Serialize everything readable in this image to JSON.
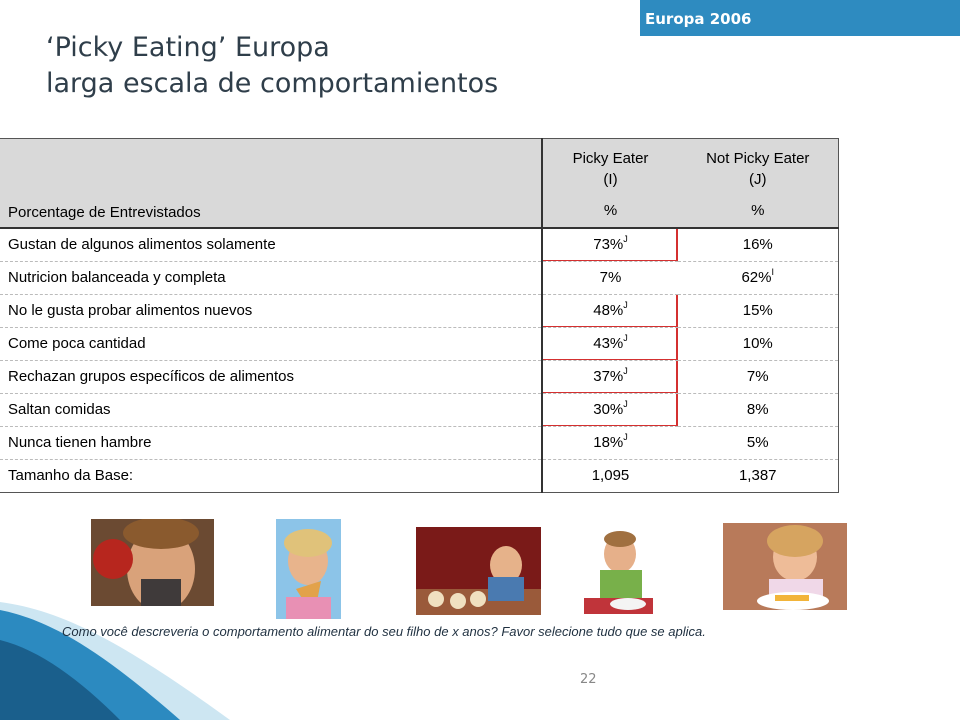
{
  "badge": "Europa 2006",
  "title_line1": "‘Picky Eating’  Europa",
  "title_line2": "larga escala de comportamientos",
  "table": {
    "header_label": "Porcentage de Entrevistados",
    "col1_name": "Picky Eater",
    "col1_code": "(I)",
    "col1_unit": "%",
    "col2_name": "Not Picky Eater",
    "col2_code": "(J)",
    "col2_unit": "%",
    "rows": [
      {
        "label": "Gustan de algunos alimentos solamente",
        "v1": "73%",
        "s1": "J",
        "v2": "16%",
        "s2": ""
      },
      {
        "label": "Nutricion balanceada y completa",
        "v1": "7%",
        "s1": "",
        "v2": "62%",
        "s2": "I"
      },
      {
        "label": "No le gusta probar alimentos nuevos",
        "v1": "48%",
        "s1": "J",
        "v2": "15%",
        "s2": ""
      },
      {
        "label": "Come poca cantidad",
        "v1": "43%",
        "s1": "J",
        "v2": "10%",
        "s2": ""
      },
      {
        "label": "Rechazan grupos específicos de  alimentos",
        "v1": "37%",
        "s1": "J",
        "v2": "7%",
        "s2": ""
      },
      {
        "label": "Saltan comidas",
        "v1": "30%",
        "s1": "J",
        "v2": "8%",
        "s2": ""
      },
      {
        "label": "Nunca tienen hambre",
        "v1": "18%",
        "s1": "J",
        "v2": "5%",
        "s2": ""
      },
      {
        "label": "Tamanho da Base:",
        "v1": "1,095",
        "s1": "",
        "v2": "1,387",
        "s2": ""
      }
    ]
  },
  "note": "Como você descreveria o comportamento alimentar do seu filho de x anos?  Favor selecione tudo que se aplica.",
  "page_number": "22",
  "colors": {
    "accent": "#2e8bc0",
    "title": "#2f3e4a",
    "header_bg": "#d9d9d9",
    "sig_border": "#d43030"
  }
}
